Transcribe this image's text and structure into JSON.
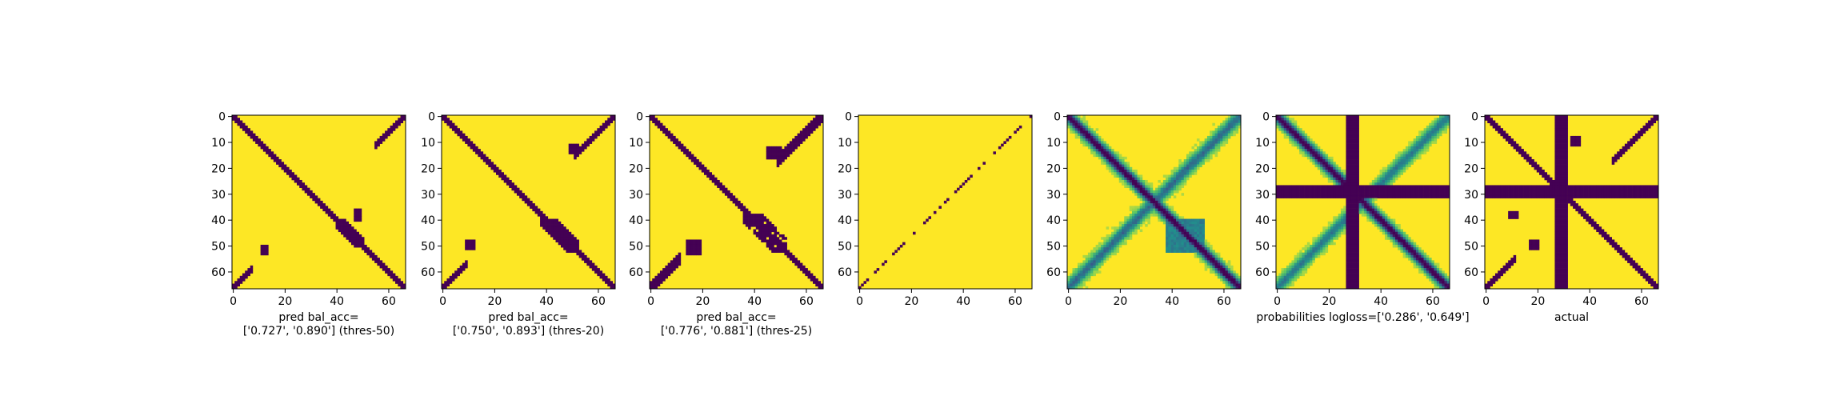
{
  "figure": {
    "colors": {
      "dark": "#440154",
      "light": "#fde725",
      "mid1": "#21908c",
      "mid2": "#5ec962",
      "mid3": "#3b528b"
    },
    "colormap": "viridis"
  },
  "chart_data": [
    {
      "type": "heatmap",
      "id": "panel-1",
      "size": 67,
      "xticks": [
        0,
        20,
        40,
        60
      ],
      "yticks": [
        0,
        10,
        20,
        30,
        40,
        50,
        60
      ],
      "caption": [
        "pred bal_acc=",
        "['0.727', '0.890'] (thres-50)"
      ],
      "bal_acc": [
        0.727,
        0.89
      ],
      "threshold": 50,
      "values_description": "binary map: 1 near diagonal band + small off-diagonal blocks"
    },
    {
      "type": "heatmap",
      "id": "panel-2",
      "size": 67,
      "xticks": [
        0,
        20,
        40,
        60
      ],
      "yticks": [
        0,
        10,
        20,
        30,
        40,
        50,
        60
      ],
      "caption": [
        "pred bal_acc=",
        "['0.750', '0.893'] (thres-20)"
      ],
      "bal_acc": [
        0.75,
        0.893
      ],
      "threshold": 20
    },
    {
      "type": "heatmap",
      "id": "panel-3",
      "size": 67,
      "xticks": [
        0,
        20,
        40,
        60
      ],
      "yticks": [
        0,
        10,
        20,
        30,
        40,
        50,
        60
      ],
      "caption": [
        "pred bal_acc=",
        "['0.776', '0.881'] (thres-25)"
      ],
      "bal_acc": [
        0.776,
        0.881
      ],
      "threshold": 25
    },
    {
      "type": "heatmap",
      "id": "panel-4",
      "size": 67,
      "xticks": [
        0,
        20,
        40,
        60
      ],
      "yticks": [
        0,
        10,
        20,
        30,
        40,
        50,
        60
      ],
      "caption": []
    },
    {
      "type": "heatmap",
      "id": "panel-5",
      "size": 67,
      "xticks": [
        0,
        20,
        40,
        60
      ],
      "yticks": [
        0,
        10,
        20,
        30,
        40,
        50,
        60
      ],
      "caption": []
    },
    {
      "type": "heatmap",
      "id": "panel-6",
      "size": 67,
      "xticks": [
        0,
        20,
        40,
        60
      ],
      "yticks": [
        0,
        10,
        20,
        30,
        40,
        50,
        60
      ],
      "caption": [
        "probabilities logloss=['0.286', '0.649']"
      ],
      "logloss": [
        0.286,
        0.649
      ]
    },
    {
      "type": "heatmap",
      "id": "panel-7",
      "size": 67,
      "xticks": [
        0,
        20,
        40,
        60
      ],
      "yticks": [
        0,
        10,
        20,
        30,
        40,
        50,
        60
      ],
      "caption": [
        "actual"
      ]
    }
  ]
}
